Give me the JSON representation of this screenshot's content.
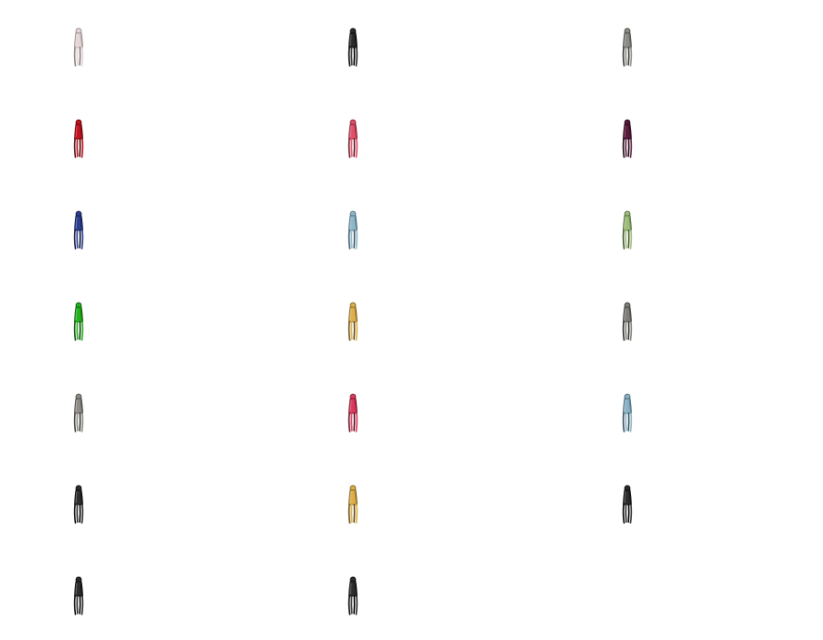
{
  "sprite_sheet": {
    "columns": 3,
    "rows": 7,
    "sprites": [
      {
        "variant": "white",
        "fill": "#e4d6d6",
        "shade": "#b9a8a8",
        "outline": "#8a7c7c"
      },
      {
        "variant": "black",
        "fill": "#2a2a2a",
        "shade": "#111111",
        "outline": "#000000"
      },
      {
        "variant": "grey",
        "fill": "#8b8b86",
        "shade": "#5f5f5a",
        "outline": "#3a3a36"
      },
      {
        "variant": "red",
        "fill": "#c0121f",
        "shade": "#7e0a12",
        "outline": "#4a0508"
      },
      {
        "variant": "pink",
        "fill": "#e0506a",
        "shade": "#a82c43",
        "outline": "#6a1526"
      },
      {
        "variant": "plum",
        "fill": "#5a1a3c",
        "shade": "#350c22",
        "outline": "#1a0511"
      },
      {
        "variant": "navy",
        "fill": "#2c3f8e",
        "shade": "#17245a",
        "outline": "#0b1233"
      },
      {
        "variant": "light-blue",
        "fill": "#8fb7c9",
        "shade": "#5f8a9c",
        "outline": "#3a5a68"
      },
      {
        "variant": "sage",
        "fill": "#9cbc7a",
        "shade": "#6c8c4e",
        "outline": "#42582c"
      },
      {
        "variant": "green",
        "fill": "#23b21c",
        "shade": "#137a0e",
        "outline": "#094507"
      },
      {
        "variant": "gold",
        "fill": "#ddb050",
        "shade": "#a9802a",
        "outline": "#6a4f14"
      },
      {
        "variant": "grey",
        "fill": "#7e7d78",
        "shade": "#54534f",
        "outline": "#302f2c"
      },
      {
        "variant": "grey",
        "fill": "#8e8c84",
        "shade": "#615f58",
        "outline": "#3a3934"
      },
      {
        "variant": "crimson",
        "fill": "#da3a5c",
        "shade": "#9e1f3a",
        "outline": "#5e0f21"
      },
      {
        "variant": "light-blue",
        "fill": "#8ab2c6",
        "shade": "#5c8498",
        "outline": "#37525e"
      },
      {
        "variant": "black",
        "fill": "#2e2e2e",
        "shade": "#141414",
        "outline": "#000000"
      },
      {
        "variant": "gold",
        "fill": "#dcae4a",
        "shade": "#a67e26",
        "outline": "#684d12"
      },
      {
        "variant": "black",
        "fill": "#2b2b2b",
        "shade": "#121212",
        "outline": "#000000"
      },
      {
        "variant": "black",
        "fill": "#2c2c2c",
        "shade": "#131313",
        "outline": "#000000"
      },
      {
        "variant": "black",
        "fill": "#2d2d2d",
        "shade": "#131313",
        "outline": "#000000"
      }
    ]
  }
}
